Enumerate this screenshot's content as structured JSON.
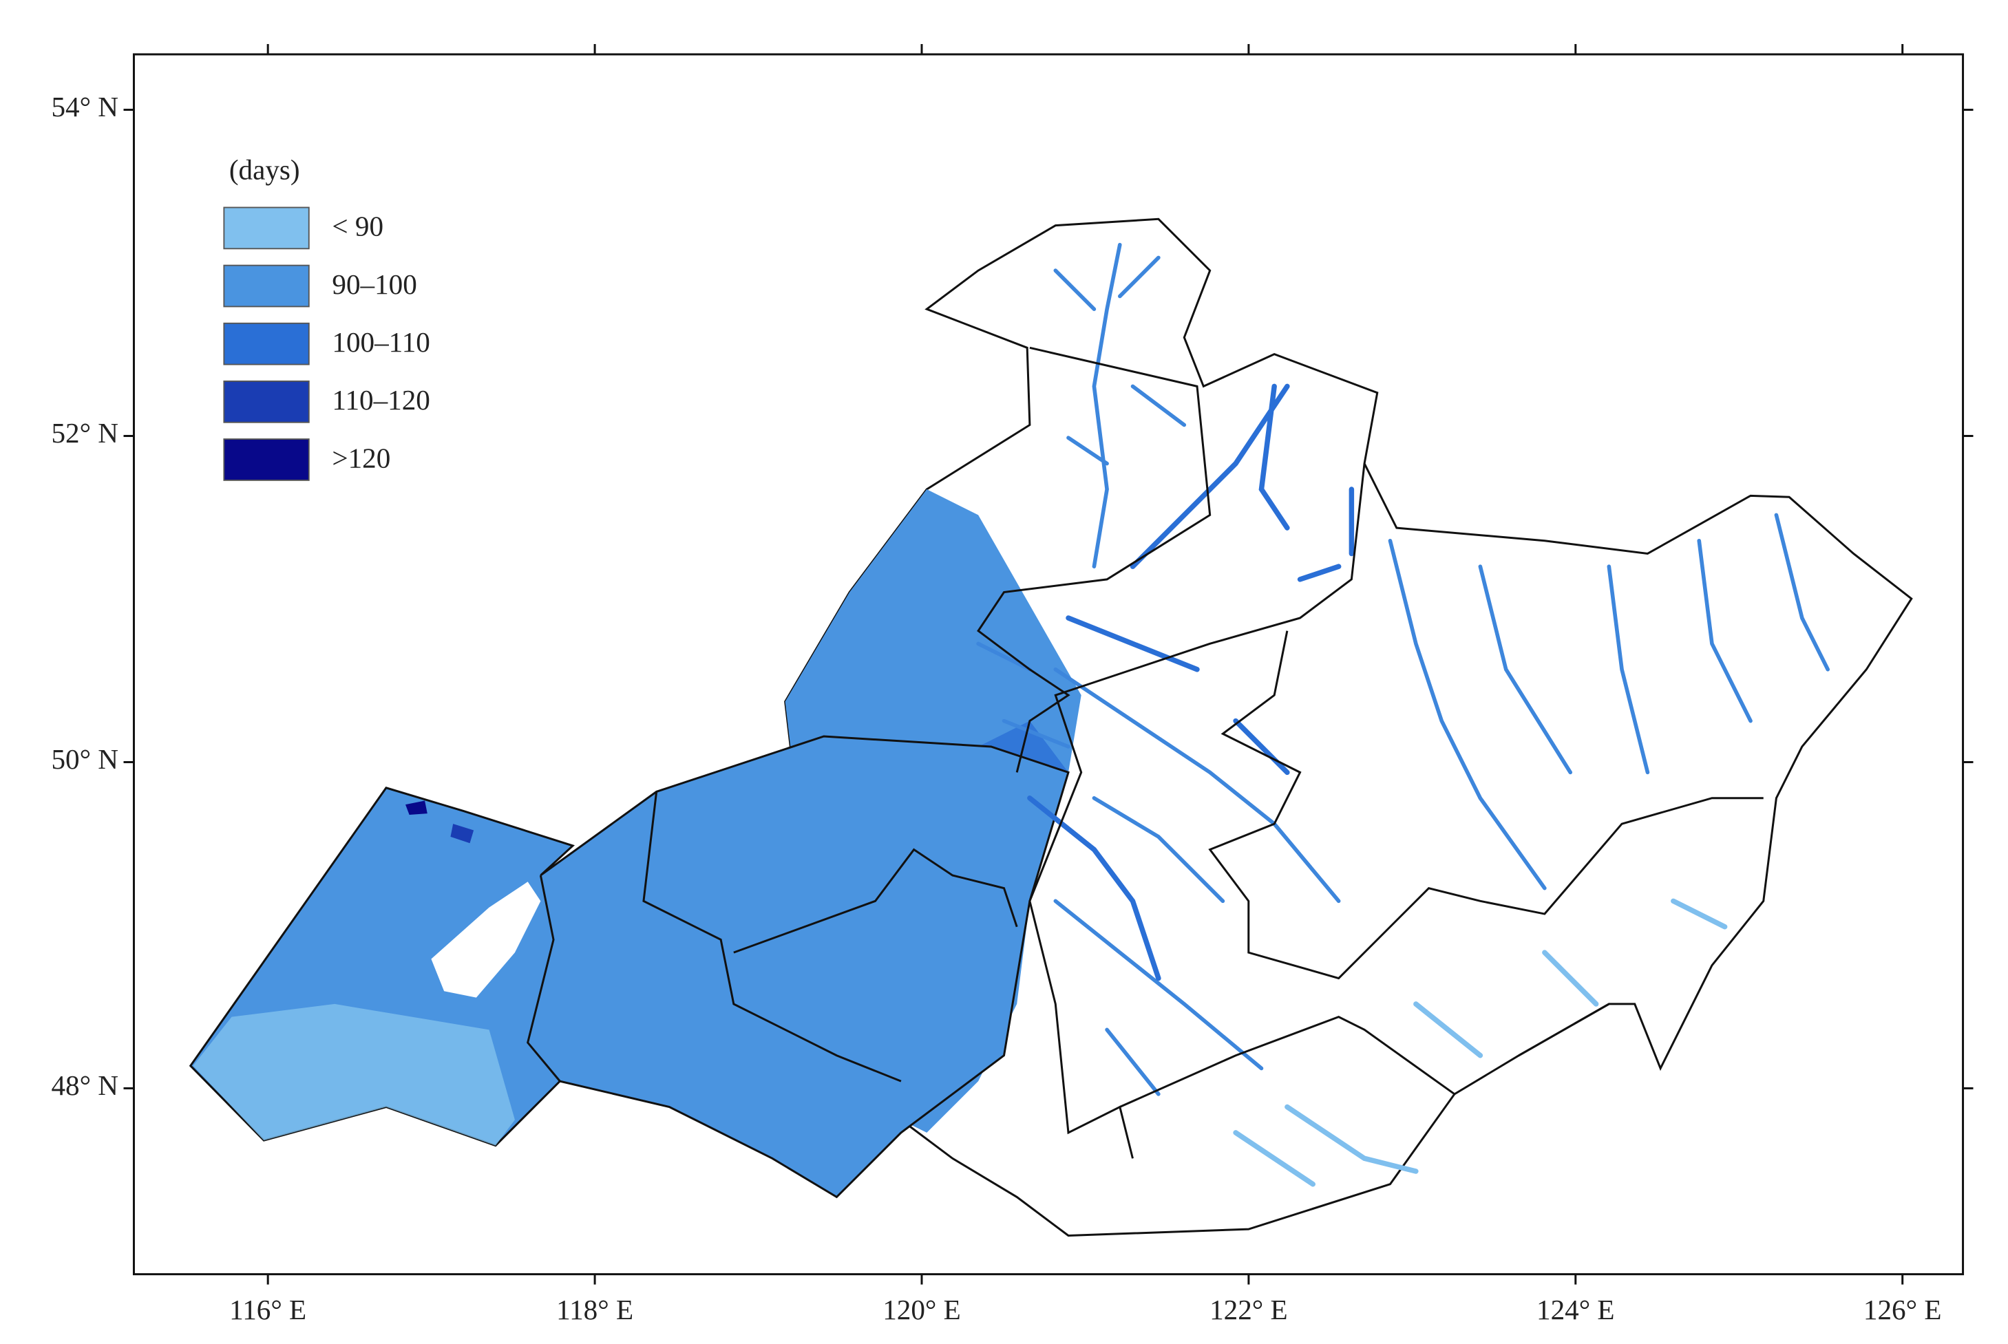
{
  "map": {
    "xlim": [
      115.18,
      126.37
    ],
    "ylim": [
      46.86,
      54.34
    ],
    "xticks": [
      {
        "value": 116,
        "label": "116° E"
      },
      {
        "value": 118,
        "label": "118° E"
      },
      {
        "value": 120,
        "label": "120° E"
      },
      {
        "value": 122,
        "label": "122° E"
      },
      {
        "value": 124,
        "label": "124° E"
      },
      {
        "value": 126,
        "label": "126° E"
      }
    ],
    "yticks": [
      {
        "value": 48,
        "label": "48° N"
      },
      {
        "value": 50,
        "label": "50° N"
      },
      {
        "value": 52,
        "label": "52° N"
      },
      {
        "value": 54,
        "label": "54° N"
      }
    ],
    "legend": {
      "title": "(days)",
      "items": [
        {
          "label": "< 90",
          "color": "#80c0ee"
        },
        {
          "label": "90–100",
          "color": "#4a94e0"
        },
        {
          "label": "100–110",
          "color": "#2a6fd6"
        },
        {
          "label": "110–120",
          "color": "#1a3db3"
        },
        {
          "label": ">120",
          "color": "#08088a"
        }
      ]
    }
  }
}
